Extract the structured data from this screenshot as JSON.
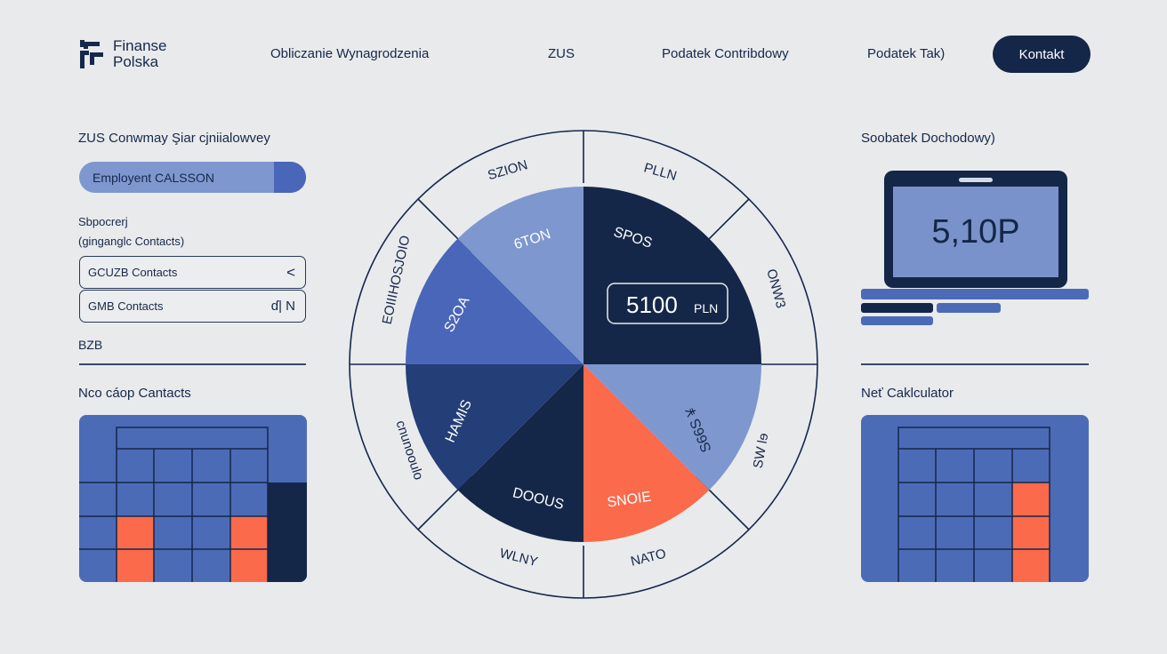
{
  "brand": {
    "line1": "Finanse",
    "line2": "Polska"
  },
  "nav": {
    "items": [
      "Obliczanie Wynagrodzenia",
      "ZUS",
      "Podatek Contribdowy",
      "Podatek Tak)"
    ],
    "cta": "Kontakt"
  },
  "left": {
    "heading": "ZUS Conwmay Şiar cjniialowvey",
    "employment": "Employent CALSSON",
    "sub1": "Sbpocrerj",
    "sub2": "(ginganglc Contacts)",
    "field1": {
      "label": "GCUZB Contacts",
      "icon": "<"
    },
    "field2": {
      "label": "GMB Contacts",
      "icon": "ɗ| N"
    },
    "section": "BZB",
    "grid_title": "Nco cáop Cantacts"
  },
  "wheel": {
    "center_value": "5100",
    "center_unit": "PLN",
    "inner": [
      "6TON",
      "SPOS",
      "S2OA",
      "HAMIS",
      "DOOUS",
      "SNOIE",
      "S66S ¥"
    ],
    "outer": [
      "SZION",
      "PLLN",
      "ONW3",
      "SW lɘ",
      "NATO",
      "WLNY",
      "cnunooulo",
      "EOIIIHOSJOIO"
    ]
  },
  "right": {
    "heading": "Soobatek Dochodowy)",
    "laptop_value": "5,10P",
    "grid_title": "Neť Caklculator"
  },
  "colors": {
    "navy": "#142748",
    "blue": "#4c6bb7",
    "light_blue": "#7f97cf",
    "orange": "#fa6a4b",
    "background": "#e9eaec"
  }
}
